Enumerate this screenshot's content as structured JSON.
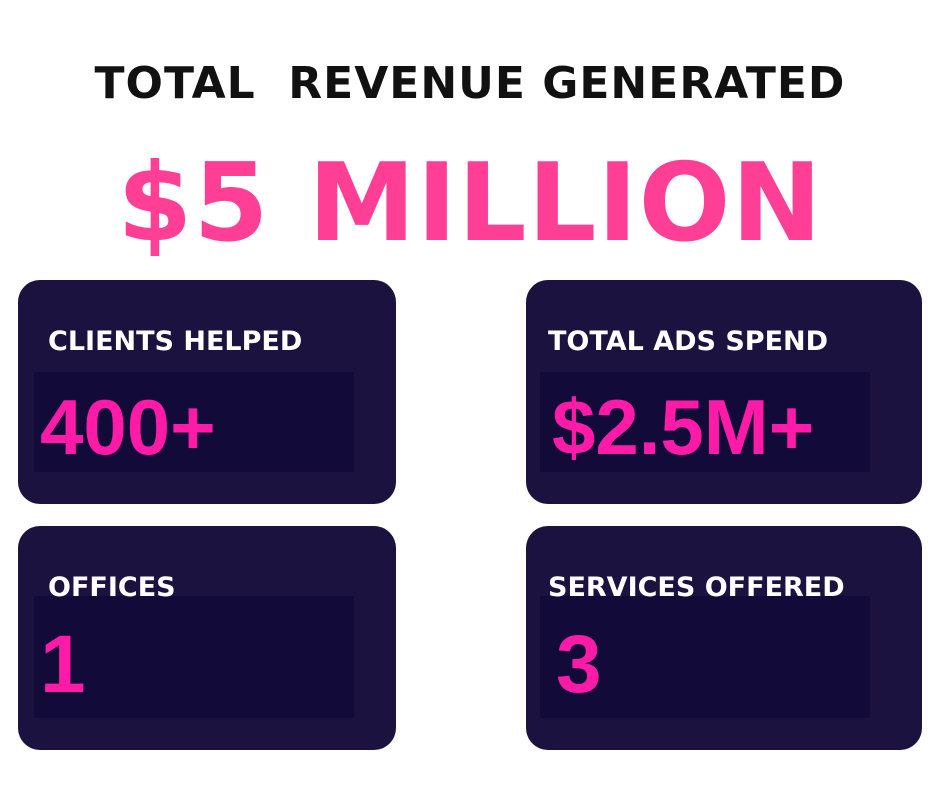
{
  "header": {
    "title": "TOTAL  REVENUE GENERATED",
    "amount": "$5 MILLION"
  },
  "stats": [
    {
      "label": "CLIENTS HELPED",
      "value": "400+"
    },
    {
      "label": "TOTAL ADS SPEND",
      "value": "$2.5M+"
    },
    {
      "label": "OFFICES",
      "value": "1"
    },
    {
      "label": "SERVICES OFFERED",
      "value": "3"
    }
  ],
  "colors": {
    "card_background": "#1c1240",
    "value_box_background": "#120b3a",
    "accent_pink": "#ff3e96",
    "value_pink": "#ff1aa8",
    "headline": "#111111",
    "label_text": "#ffffff"
  }
}
